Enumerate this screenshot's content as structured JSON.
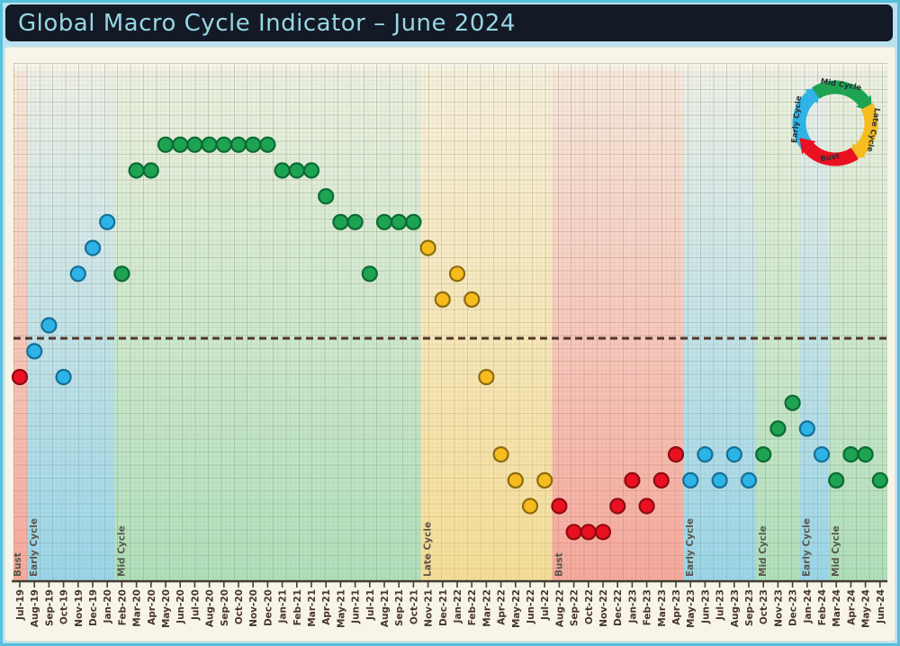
{
  "header": {
    "title": "Global Macro Cycle Indicator – June 2024"
  },
  "chart_data": {
    "type": "scatter",
    "title": "Global Macro Cycle Indicator – June 2024",
    "x_unit": "month",
    "grid": true,
    "ylim": [
      -8.5,
      9
    ],
    "value_note": "monthly indicator level in grid units relative to the dashed neutral baseline (0)",
    "threshold": {
      "value": 0,
      "style": "dashed",
      "color": "#53362A"
    },
    "months": [
      "Jul-19",
      "Aug-19",
      "Sep-19",
      "Oct-19",
      "Nov-19",
      "Dec-19",
      "Jan-20",
      "Feb-20",
      "Mar-20",
      "Apr-20",
      "May-20",
      "Jun-20",
      "Jul-20",
      "Aug-20",
      "Sep-20",
      "Oct-20",
      "Nov-20",
      "Dec-20",
      "Jan-21",
      "Feb-21",
      "Mar-21",
      "Apr-21",
      "May-21",
      "Jun-21",
      "Jul-21",
      "Aug-21",
      "Sep-21",
      "Oct-21",
      "Nov-21",
      "Dec-21",
      "Jan-22",
      "Feb-22",
      "Mar-22",
      "Apr-22",
      "May-22",
      "Jun-22",
      "Jul-22",
      "Aug-22",
      "Sep-22",
      "Oct-22",
      "Nov-22",
      "Dec-22",
      "Jan-23",
      "Feb-23",
      "Mar-23",
      "Apr-23",
      "May-23",
      "Jun-23",
      "Jul-23",
      "Aug-23",
      "Sep-23",
      "Oct-23",
      "Nov-23",
      "Dec-23",
      "Jan-24",
      "Feb-24",
      "Mar-24",
      "Apr-24",
      "May-24",
      "Jun-24"
    ],
    "points": [
      {
        "m": "Jul-19",
        "v": -1.5,
        "phase": "bust"
      },
      {
        "m": "Aug-19",
        "v": -0.5,
        "phase": "early"
      },
      {
        "m": "Sep-19",
        "v": 0.5,
        "phase": "early"
      },
      {
        "m": "Oct-19",
        "v": -1.5,
        "phase": "early"
      },
      {
        "m": "Nov-19",
        "v": 2.5,
        "phase": "early"
      },
      {
        "m": "Dec-19",
        "v": 3.5,
        "phase": "early"
      },
      {
        "m": "Jan-20",
        "v": 4.5,
        "phase": "early"
      },
      {
        "m": "Feb-20",
        "v": 2.5,
        "phase": "mid"
      },
      {
        "m": "Mar-20",
        "v": 6.5,
        "phase": "mid"
      },
      {
        "m": "Apr-20",
        "v": 6.5,
        "phase": "mid"
      },
      {
        "m": "May-20",
        "v": 7.5,
        "phase": "mid"
      },
      {
        "m": "Jun-20",
        "v": 7.5,
        "phase": "mid"
      },
      {
        "m": "Jul-20",
        "v": 7.5,
        "phase": "mid"
      },
      {
        "m": "Aug-20",
        "v": 7.5,
        "phase": "mid"
      },
      {
        "m": "Sep-20",
        "v": 7.5,
        "phase": "mid"
      },
      {
        "m": "Oct-20",
        "v": 7.5,
        "phase": "mid"
      },
      {
        "m": "Nov-20",
        "v": 7.5,
        "phase": "mid"
      },
      {
        "m": "Dec-20",
        "v": 7.5,
        "phase": "mid"
      },
      {
        "m": "Jan-21",
        "v": 6.5,
        "phase": "mid"
      },
      {
        "m": "Feb-21",
        "v": 6.5,
        "phase": "mid"
      },
      {
        "m": "Mar-21",
        "v": 6.5,
        "phase": "mid"
      },
      {
        "m": "Apr-21",
        "v": 5.5,
        "phase": "mid"
      },
      {
        "m": "May-21",
        "v": 4.5,
        "phase": "mid"
      },
      {
        "m": "Jun-21",
        "v": 4.5,
        "phase": "mid"
      },
      {
        "m": "Jul-21",
        "v": 2.5,
        "phase": "mid"
      },
      {
        "m": "Aug-21",
        "v": 4.5,
        "phase": "mid"
      },
      {
        "m": "Sep-21",
        "v": 4.5,
        "phase": "mid"
      },
      {
        "m": "Oct-21",
        "v": 4.5,
        "phase": "mid"
      },
      {
        "m": "Nov-21",
        "v": 3.5,
        "phase": "late"
      },
      {
        "m": "Dec-21",
        "v": 1.5,
        "phase": "late"
      },
      {
        "m": "Jan-22",
        "v": 2.5,
        "phase": "late"
      },
      {
        "m": "Feb-22",
        "v": 1.5,
        "phase": "late"
      },
      {
        "m": "Mar-22",
        "v": -1.5,
        "phase": "late"
      },
      {
        "m": "Apr-22",
        "v": -4.5,
        "phase": "late"
      },
      {
        "m": "May-22",
        "v": -5.5,
        "phase": "late"
      },
      {
        "m": "Jun-22",
        "v": -6.5,
        "phase": "late"
      },
      {
        "m": "Jul-22",
        "v": -5.5,
        "phase": "late"
      },
      {
        "m": "Aug-22",
        "v": -6.5,
        "phase": "bust"
      },
      {
        "m": "Sep-22",
        "v": -7.5,
        "phase": "bust"
      },
      {
        "m": "Oct-22",
        "v": -7.5,
        "phase": "bust"
      },
      {
        "m": "Nov-22",
        "v": -7.5,
        "phase": "bust"
      },
      {
        "m": "Dec-22",
        "v": -6.5,
        "phase": "bust"
      },
      {
        "m": "Jan-23",
        "v": -5.5,
        "phase": "bust"
      },
      {
        "m": "Feb-23",
        "v": -6.5,
        "phase": "bust"
      },
      {
        "m": "Mar-23",
        "v": -5.5,
        "phase": "bust"
      },
      {
        "m": "Apr-23",
        "v": -4.5,
        "phase": "bust"
      },
      {
        "m": "May-23",
        "v": -5.5,
        "phase": "early"
      },
      {
        "m": "Jun-23",
        "v": -4.5,
        "phase": "early"
      },
      {
        "m": "Jul-23",
        "v": -5.5,
        "phase": "early"
      },
      {
        "m": "Aug-23",
        "v": -4.5,
        "phase": "early"
      },
      {
        "m": "Sep-23",
        "v": -5.5,
        "phase": "early"
      },
      {
        "m": "Oct-23",
        "v": -4.5,
        "phase": "mid"
      },
      {
        "m": "Nov-23",
        "v": -3.5,
        "phase": "mid"
      },
      {
        "m": "Dec-23",
        "v": -2.5,
        "phase": "mid"
      },
      {
        "m": "Jan-24",
        "v": -3.5,
        "phase": "early"
      },
      {
        "m": "Feb-24",
        "v": -4.5,
        "phase": "early"
      },
      {
        "m": "Mar-24",
        "v": -5.5,
        "phase": "mid"
      },
      {
        "m": "Apr-24",
        "v": -4.5,
        "phase": "mid"
      },
      {
        "m": "May-24",
        "v": -4.5,
        "phase": "mid"
      },
      {
        "m": "Jun-24",
        "v": -5.5,
        "phase": "mid"
      }
    ],
    "bands": [
      {
        "label": "Bust",
        "phase": "bust",
        "from": "Jul-19",
        "to": "Jul-19",
        "start": 0,
        "end": 0
      },
      {
        "label": "Early Cycle",
        "phase": "early",
        "from": "Aug-19",
        "to": "Jan-20",
        "start": 1,
        "end": 6
      },
      {
        "label": "Mid Cycle",
        "phase": "mid",
        "from": "Feb-20",
        "to": "Oct-21",
        "start": 7,
        "end": 27
      },
      {
        "label": "Late Cycle",
        "phase": "late",
        "from": "Nov-21",
        "to": "Jul-22",
        "start": 28,
        "end": 36
      },
      {
        "label": "Bust",
        "phase": "bust",
        "from": "Aug-22",
        "to": "Apr-23",
        "start": 37,
        "end": 45
      },
      {
        "label": "Early Cycle",
        "phase": "early",
        "from": "May-23",
        "to": "Sep-23",
        "start": 46,
        "end": 50
      },
      {
        "label": "Mid Cycle",
        "phase": "mid",
        "from": "Oct-23",
        "to": "Dec-23",
        "start": 51,
        "end": 53
      },
      {
        "label": "Early Cycle",
        "phase": "early",
        "from": "Jan-24",
        "to": "Feb-24",
        "start": 54,
        "end": 55
      },
      {
        "label": "Mid Cycle",
        "phase": "mid",
        "from": "Mar-24",
        "to": "Jun-24",
        "start": 56,
        "end": 59
      }
    ],
    "cycle_flow": [
      "Early Cycle",
      "Mid Cycle",
      "Late Cycle",
      "Bust"
    ],
    "colors": {
      "early": {
        "label": "Early Cycle",
        "dot": "#2EB3E6",
        "stroke": "#156F96",
        "band": "#41B7E6"
      },
      "mid": {
        "label": "Mid Cycle",
        "dot": "#1EA352",
        "stroke": "#0C6B33",
        "band": "#3FBE74"
      },
      "late": {
        "label": "Late Cycle",
        "dot": "#F6BB1D",
        "stroke": "#8D6A10",
        "band": "#F2C84B"
      },
      "bust": {
        "label": "Bust",
        "dot": "#E91120",
        "stroke": "#8F0B12",
        "band": "#F25B4E"
      }
    }
  }
}
